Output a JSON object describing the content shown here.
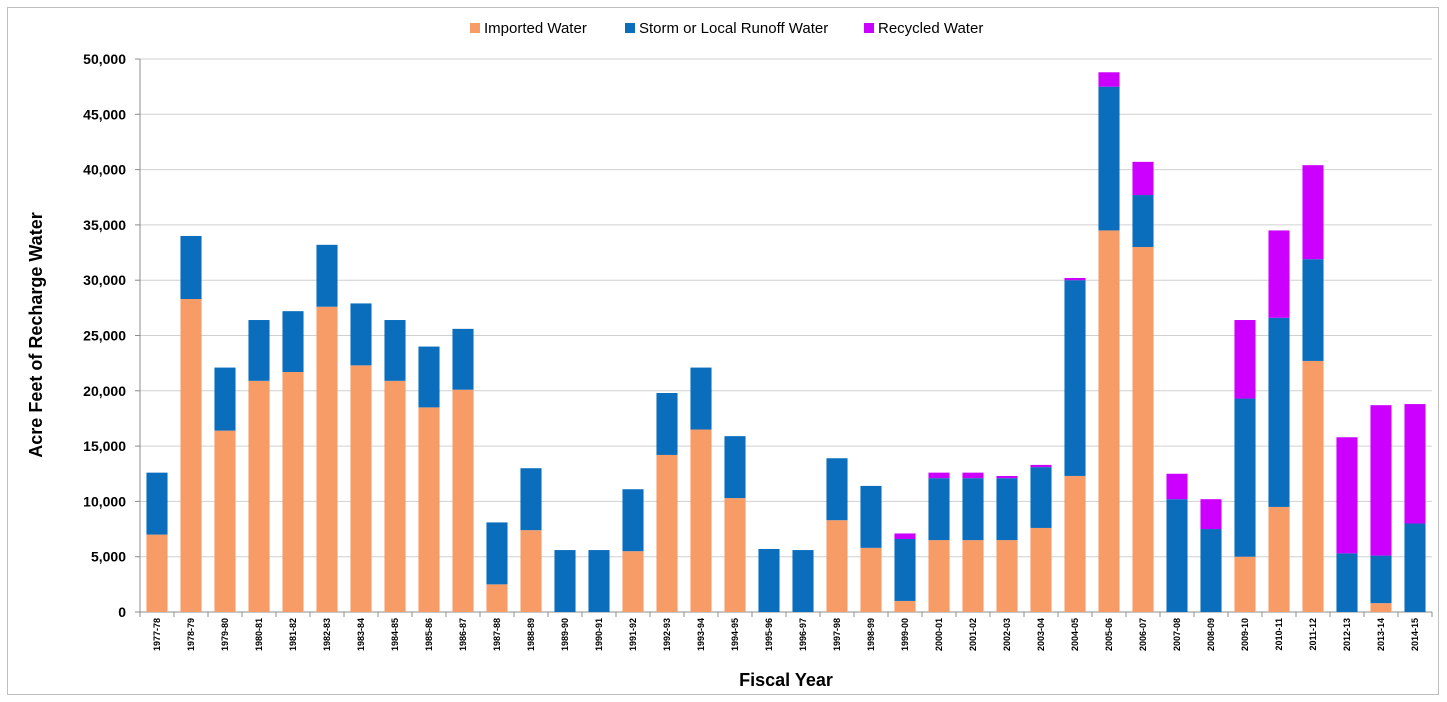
{
  "chart_data": {
    "type": "bar",
    "stacked": true,
    "xlabel": "Fiscal Year",
    "ylabel": "Acre Feet of Recharge Water",
    "ylim": [
      0,
      50000
    ],
    "yticks": [
      0,
      5000,
      10000,
      15000,
      20000,
      25000,
      30000,
      35000,
      40000,
      45000,
      50000
    ],
    "ytick_labels": [
      "0",
      "5,000",
      "10,000",
      "15,000",
      "20,000",
      "25,000",
      "30,000",
      "35,000",
      "40,000",
      "45,000",
      "50,000"
    ],
    "grid": true,
    "legend_position": "top-center",
    "categories": [
      "1977-78",
      "1978-79",
      "1979-80",
      "1980-81",
      "1981-82",
      "1982-83",
      "1983-84",
      "1984-85",
      "1985-86",
      "1986-87",
      "1987-88",
      "1988-89",
      "1989-90",
      "1990-91",
      "1991-92",
      "1992-93",
      "1993-94",
      "1994-95",
      "1995-96",
      "1996-97",
      "1997-98",
      "1998-99",
      "1999-00",
      "2000-01",
      "2001-02",
      "2002-03",
      "2003-04",
      "2004-05",
      "2005-06",
      "2006-07",
      "2007-08",
      "2008-09",
      "2009-10",
      "2010-11",
      "2011-12",
      "2012-13",
      "2013-14",
      "2014-15"
    ],
    "series": [
      {
        "name": "Imported Water",
        "color": "#f79b67",
        "values": [
          7000,
          28300,
          16400,
          20900,
          21700,
          27600,
          22300,
          20900,
          18500,
          20100,
          2500,
          7400,
          0,
          0,
          5500,
          14200,
          16500,
          10300,
          0,
          0,
          8300,
          5800,
          1000,
          6500,
          6500,
          6500,
          7600,
          12300,
          34500,
          33000,
          0,
          0,
          5000,
          9500,
          22700,
          0,
          800,
          0
        ]
      },
      {
        "name": "Storm or Local Runoff Water",
        "color": "#0a6ebd",
        "values": [
          5600,
          5700,
          5700,
          5500,
          5500,
          5600,
          5600,
          5500,
          5500,
          5500,
          5600,
          5600,
          5600,
          5600,
          5600,
          5600,
          5600,
          5600,
          5700,
          5600,
          5600,
          5600,
          5600,
          5600,
          5600,
          5600,
          5500,
          17700,
          13000,
          4700,
          10200,
          7500,
          14300,
          17100,
          9200,
          5300,
          4300,
          8000
        ]
      },
      {
        "name": "Recycled Water",
        "color": "#cc00ff",
        "values": [
          0,
          0,
          0,
          0,
          0,
          0,
          0,
          0,
          0,
          0,
          0,
          0,
          0,
          0,
          0,
          0,
          0,
          0,
          0,
          0,
          0,
          0,
          500,
          500,
          500,
          200,
          200,
          200,
          1300,
          3000,
          2300,
          2700,
          7100,
          7900,
          8500,
          10500,
          13600,
          10800
        ]
      }
    ]
  }
}
